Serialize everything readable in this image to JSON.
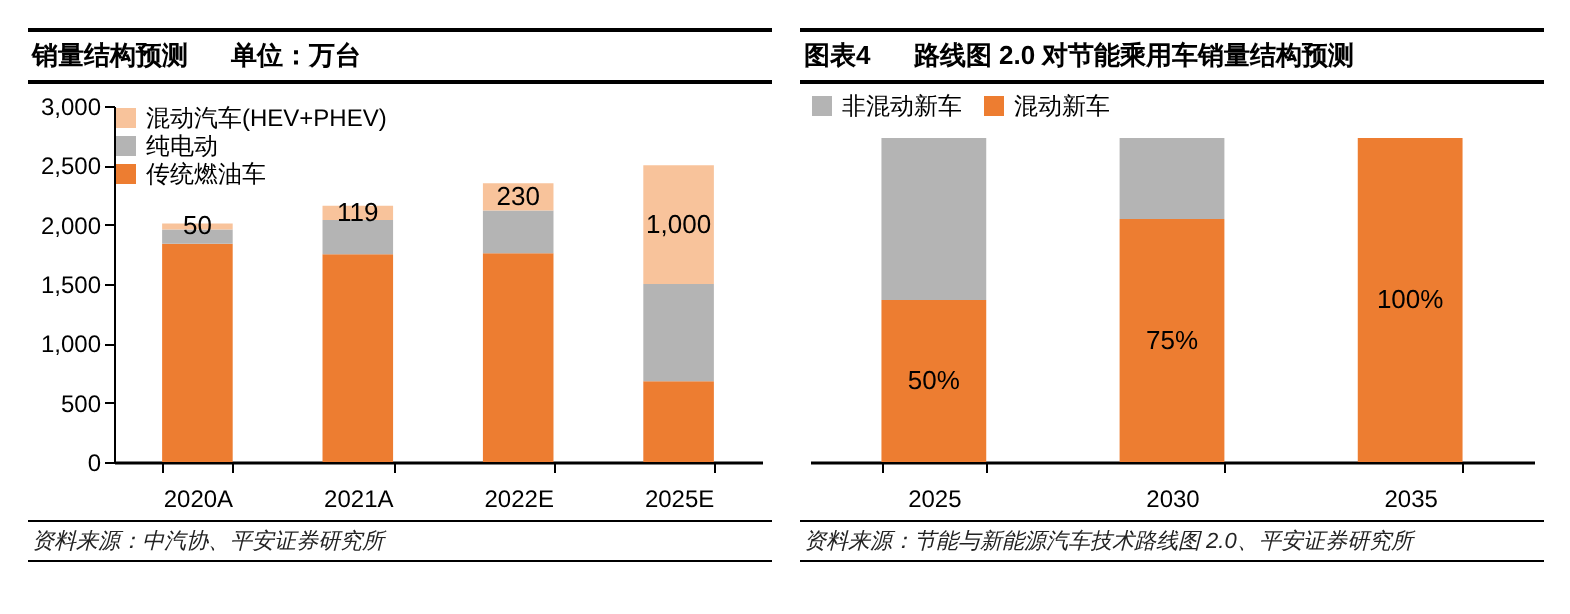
{
  "chart_data": [
    {
      "type": "bar",
      "title": "销量结构预测      单位：万台",
      "categories": [
        "2020A",
        "2021A",
        "2022E",
        "2025E"
      ],
      "stacked": true,
      "ylim": [
        0,
        3000
      ],
      "yticks": [
        0,
        500,
        {
          "value": 1000,
          "label": "1,000"
        },
        {
          "value": 1500,
          "label": "1,500"
        },
        {
          "value": 2000,
          "label": "2,000"
        },
        {
          "value": 2500,
          "label": "2,500"
        },
        {
          "value": 3000,
          "label": "3,000"
        }
      ],
      "legend": "top left",
      "annotations": [
        "资料来源：中汽协、平安证券研究所"
      ],
      "series": [
        {
          "name": "传统燃油车",
          "color": "#ed7d31",
          "values": [
            1840,
            1750,
            1760,
            680
          ]
        },
        {
          "name": "纯电动",
          "color": "#b4b4b4",
          "values": [
            120,
            290,
            360,
            820
          ]
        },
        {
          "name": "混动汽车(HEV+PHEV)",
          "color": "#f8c39b",
          "values": [
            50,
            119,
            230,
            1000
          ],
          "value_labels": [
            "50",
            "119",
            "230",
            "1,000"
          ]
        }
      ]
    },
    {
      "type": "bar",
      "title": "图表4      路线图 2.0 对节能乘用车销量结构预测",
      "categories": [
        "2025",
        "2030",
        "2035"
      ],
      "stacked": true,
      "ylim": [
        0,
        100
      ],
      "tick_labels": "x",
      "legend": "top",
      "annotations": [
        "资料来源：节能与新能源汽车技术路线图 2.0、平安证券研究所"
      ],
      "series": [
        {
          "name": "混动新车",
          "color": "#ed7d31",
          "values": [
            50,
            75,
            100
          ],
          "value_labels": [
            "50%",
            "75%",
            "100%"
          ]
        },
        {
          "name": "非混动新车",
          "color": "#b4b4b4",
          "values": [
            50,
            25,
            0
          ]
        }
      ]
    }
  ]
}
